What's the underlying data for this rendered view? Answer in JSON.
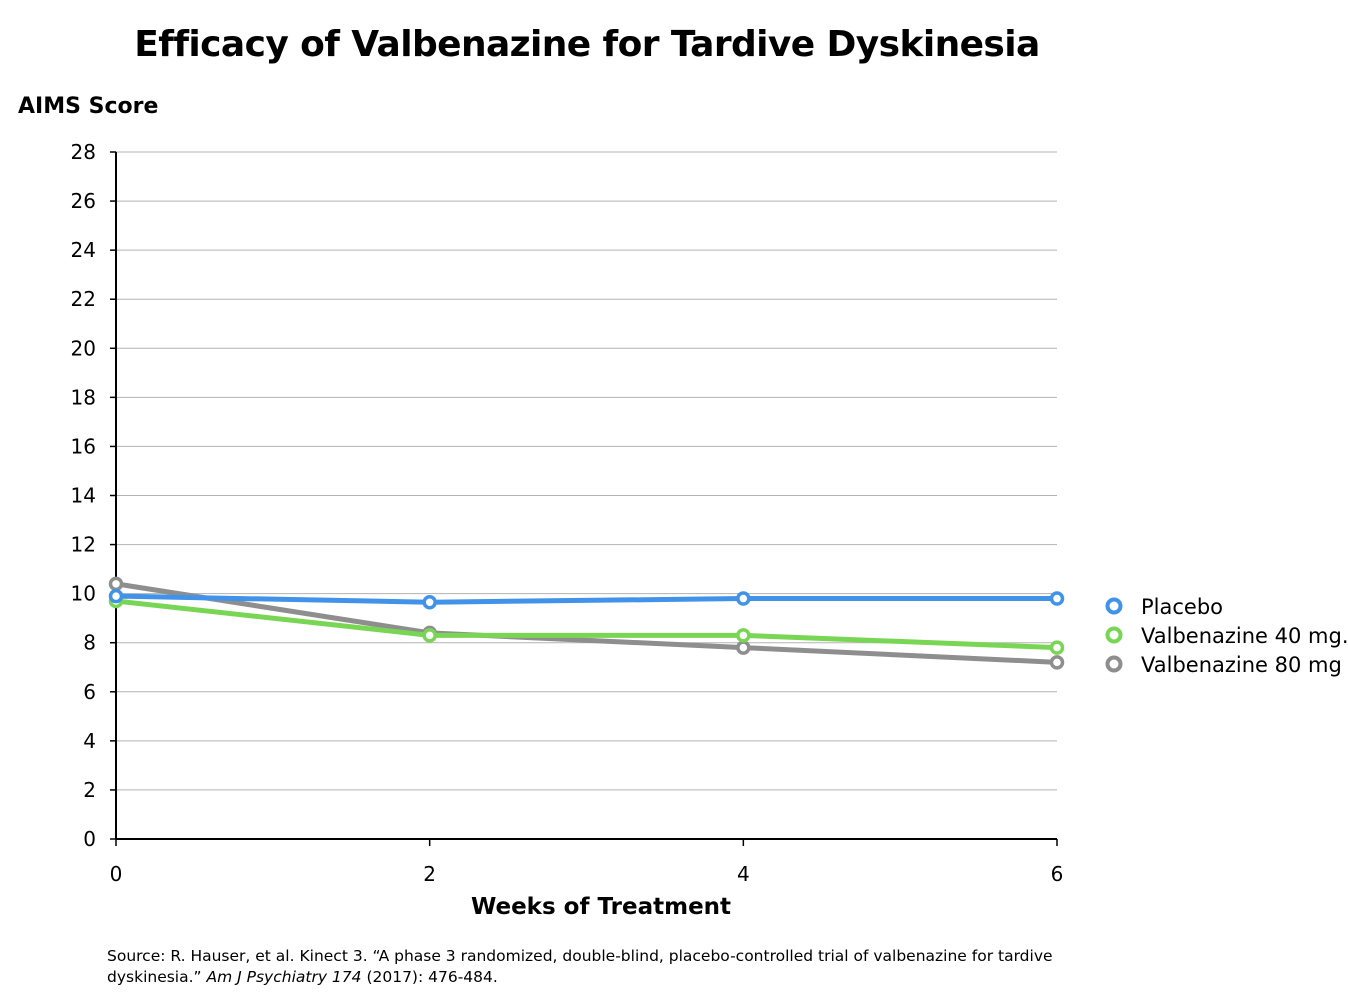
{
  "chart_data": {
    "type": "line",
    "title": "Efficacy of Valbenazine for Tardive Dyskinesia",
    "ylabel": "AIMS Score",
    "xlabel": "Weeks of Treatment",
    "x": [
      0,
      2,
      4,
      6
    ],
    "xlim": [
      0,
      6
    ],
    "ylim": [
      0,
      28
    ],
    "yticks": [
      0,
      2,
      4,
      6,
      8,
      10,
      12,
      14,
      16,
      18,
      20,
      22,
      24,
      26,
      28
    ],
    "xticks": [
      0,
      2,
      4,
      6
    ],
    "grid": true,
    "legend_position": "right",
    "series": [
      {
        "name": "Placebo",
        "values": [
          9.9,
          9.65,
          9.8,
          9.8
        ],
        "color": "#4193e9"
      },
      {
        "name": "Valbenazine 40 mg.",
        "values": [
          9.7,
          8.3,
          8.3,
          7.8
        ],
        "color": "#79d655"
      },
      {
        "name": "Valbenazine 80 mg",
        "values": [
          10.4,
          8.4,
          7.8,
          7.2
        ],
        "color": "#8e8e8e"
      }
    ]
  },
  "source": {
    "line1": "Source: R. Hauser, et al. Kinect 3.  “A phase 3 randomized, double-blind, placebo-controlled trial of valbenazine for tardive",
    "line2_prefix": "dyskinesia.” ",
    "journal": "Am J Psychiatry 174",
    "line2_suffix": " (2017): 476-484."
  }
}
